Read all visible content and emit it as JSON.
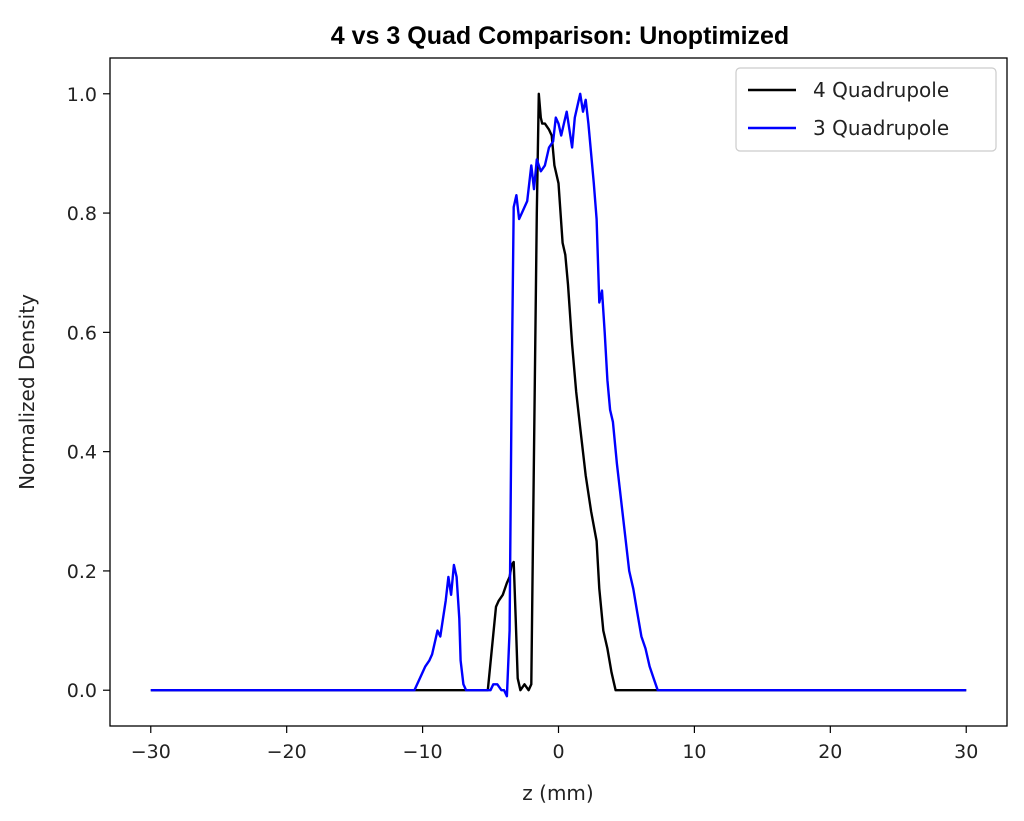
{
  "chart_data": {
    "type": "line",
    "title": "4 vs 3 Quad Comparison: Unoptimized",
    "xlabel": "z (mm)",
    "ylabel": "Normalized Density",
    "xlim": [
      -33,
      33
    ],
    "ylim": [
      -0.06,
      1.06
    ],
    "xticks": [
      -30,
      -20,
      -10,
      0,
      10,
      20,
      30
    ],
    "xtick_labels": [
      "−30",
      "−20",
      "−10",
      "0",
      "10",
      "20",
      "30"
    ],
    "yticks": [
      0.0,
      0.2,
      0.4,
      0.6,
      0.8,
      1.0
    ],
    "ytick_labels": [
      "0.0",
      "0.2",
      "0.4",
      "0.6",
      "0.8",
      "1.0"
    ],
    "grid": false,
    "legend_position": "top-right",
    "series": [
      {
        "name": "4 Quadrupole",
        "color": "#000000",
        "x": [
          -30,
          -10,
          -5.2,
          -4.9,
          -4.6,
          -4.4,
          -4.1,
          -3.8,
          -3.6,
          -3.45,
          -3.3,
          -3.15,
          -3.0,
          -2.8,
          -2.5,
          -2.2,
          -2.0,
          -1.8,
          -1.6,
          -1.45,
          -1.3,
          -1.2,
          -1.0,
          -0.7,
          -0.5,
          -0.3,
          0.0,
          0.3,
          0.5,
          0.7,
          1.0,
          1.3,
          1.6,
          2.0,
          2.4,
          2.8,
          3.0,
          3.3,
          3.6,
          3.9,
          4.2,
          4.5,
          5.0,
          7.0,
          30
        ],
        "y": [
          0,
          0,
          0,
          0.07,
          0.14,
          0.15,
          0.16,
          0.18,
          0.19,
          0.21,
          0.215,
          0.12,
          0.02,
          0.0,
          0.01,
          0.0,
          0.01,
          0.4,
          0.8,
          1.0,
          0.96,
          0.95,
          0.95,
          0.94,
          0.93,
          0.88,
          0.85,
          0.75,
          0.73,
          0.68,
          0.58,
          0.5,
          0.44,
          0.36,
          0.3,
          0.25,
          0.17,
          0.1,
          0.07,
          0.03,
          0.0,
          0.0,
          0.0,
          0.0,
          0
        ]
      },
      {
        "name": "3 Quadrupole",
        "color": "#0000ff",
        "x": [
          -30,
          -10.6,
          -10.2,
          -9.8,
          -9.5,
          -9.3,
          -9.1,
          -8.9,
          -8.7,
          -8.5,
          -8.3,
          -8.1,
          -7.9,
          -7.7,
          -7.5,
          -7.3,
          -7.2,
          -7.0,
          -6.8,
          -6.5,
          -6.0,
          -5.5,
          -5.0,
          -4.8,
          -4.5,
          -4.2,
          -4.0,
          -3.8,
          -3.6,
          -3.45,
          -3.3,
          -3.1,
          -2.9,
          -2.7,
          -2.5,
          -2.3,
          -2.0,
          -1.8,
          -1.6,
          -1.3,
          -1.0,
          -0.7,
          -0.4,
          -0.2,
          0.0,
          0.2,
          0.4,
          0.6,
          0.8,
          1.0,
          1.2,
          1.4,
          1.6,
          1.8,
          2.0,
          2.2,
          2.4,
          2.6,
          2.8,
          3.0,
          3.2,
          3.4,
          3.6,
          3.8,
          4.0,
          4.3,
          4.6,
          4.9,
          5.2,
          5.5,
          5.8,
          6.1,
          6.4,
          6.7,
          7.0,
          7.3,
          8.0,
          30
        ],
        "y": [
          0,
          0,
          0.02,
          0.04,
          0.05,
          0.06,
          0.08,
          0.1,
          0.09,
          0.12,
          0.15,
          0.19,
          0.16,
          0.21,
          0.19,
          0.12,
          0.05,
          0.01,
          0.0,
          0.0,
          0.0,
          0.0,
          0.0,
          0.01,
          0.01,
          0.0,
          0.0,
          -0.01,
          0.1,
          0.5,
          0.81,
          0.83,
          0.79,
          0.8,
          0.81,
          0.82,
          0.88,
          0.84,
          0.89,
          0.87,
          0.88,
          0.91,
          0.92,
          0.96,
          0.95,
          0.93,
          0.95,
          0.97,
          0.94,
          0.91,
          0.96,
          0.98,
          1.0,
          0.97,
          0.99,
          0.95,
          0.9,
          0.85,
          0.79,
          0.65,
          0.67,
          0.6,
          0.52,
          0.47,
          0.45,
          0.38,
          0.32,
          0.26,
          0.2,
          0.17,
          0.13,
          0.09,
          0.07,
          0.04,
          0.02,
          0.0,
          0.0,
          0
        ]
      }
    ]
  }
}
